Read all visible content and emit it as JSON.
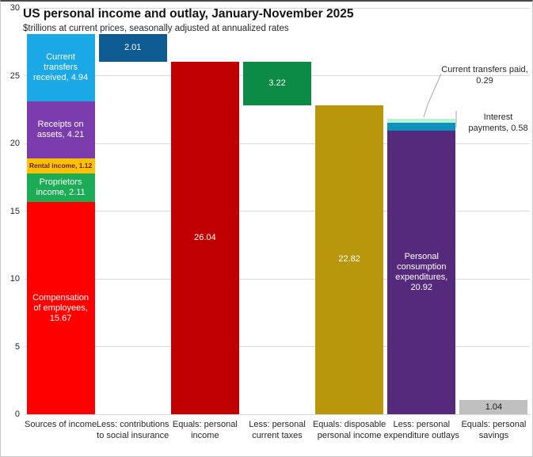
{
  "chart_data": {
    "type": "bar",
    "subtype": "stacked-waterfall",
    "title": "US personal income and outlay, January-November 2025",
    "subtitle": "$trillions at current prices, seasonally adjusted at annualized rates",
    "ylim": [
      0,
      30
    ],
    "yticks": [
      0,
      5,
      10,
      15,
      20,
      25,
      30
    ],
    "grid": true,
    "legend": "none",
    "categories": [
      "Sources of income",
      "Less: contributions to social insurance",
      "Equals: personal income",
      "Less: personal current taxes",
      "Equals: disposable personal income",
      "Less: personal expenditure outlays",
      "Equals: personal savings"
    ],
    "bars": [
      {
        "category": "Sources of income",
        "base": 0,
        "segments": [
          {
            "name": "Compensation of employees",
            "value": 15.67,
            "label": "Compensation of employees, 15.67",
            "color": "#fe0000",
            "text_color": "#ffffff"
          },
          {
            "name": "Proprietors income",
            "value": 2.11,
            "label": "Proprietors income, 2.11",
            "color": "#1cac55",
            "text_color": "#ffffff"
          },
          {
            "name": "Rental income",
            "value": 1.12,
            "label": "Rental income, 1.12",
            "color": "#ffc000",
            "text_color": "#632423",
            "small_text": true
          },
          {
            "name": "Receipts on assets",
            "value": 4.21,
            "label": "Receipts on assets, 4.21",
            "color": "#7b3cae",
            "text_color": "#ffffff"
          },
          {
            "name": "Current transfers received",
            "value": 4.94,
            "label": "Current transfers received, 4.94",
            "color": "#1ba8e6",
            "text_color": "#ffffff"
          }
        ]
      },
      {
        "category": "Less: contributions to social insurance",
        "base": 26.04,
        "segments": [
          {
            "name": "Contributions to social insurance",
            "value": 2.01,
            "label": "2.01",
            "color": "#0f5b94",
            "text_color": "#ffffff"
          }
        ]
      },
      {
        "category": "Equals: personal income",
        "base": 0,
        "segments": [
          {
            "name": "Personal income",
            "value": 26.04,
            "label": "26.04",
            "color": "#c00000",
            "text_color": "#ffffff"
          }
        ]
      },
      {
        "category": "Less: personal current taxes",
        "base": 22.82,
        "segments": [
          {
            "name": "Personal current taxes",
            "value": 3.22,
            "label": "3.22",
            "color": "#0c8b46",
            "text_color": "#ffffff"
          }
        ]
      },
      {
        "category": "Equals: disposable personal income",
        "base": 0,
        "segments": [
          {
            "name": "Disposable personal income",
            "value": 22.82,
            "label": "22.82",
            "color": "#b9970c",
            "text_color": "#ffffff"
          }
        ]
      },
      {
        "category": "Less: personal expenditure outlays",
        "base": 0,
        "segments": [
          {
            "name": "Personal consumption expenditures",
            "value": 20.92,
            "label": "Personal consumption expenditures, 20.92",
            "color": "#552a7d",
            "text_color": "#ffffff"
          },
          {
            "name": "Interest payments",
            "value": 0.58,
            "label": "",
            "color": "#0d91bd",
            "text_color": "#ffffff"
          },
          {
            "name": "Current transfers paid",
            "value": 0.29,
            "label": "",
            "color": "#b9f2d3",
            "text_color": "#262626"
          }
        ]
      },
      {
        "category": "Equals: personal savings",
        "base": 0,
        "segments": [
          {
            "name": "Personal savings",
            "value": 1.04,
            "label": "1.04",
            "color": "#c0c0c0",
            "text_color": "#1a1a1a"
          }
        ]
      }
    ],
    "annotations": [
      {
        "text": "Current transfers paid, 0.29",
        "target_segment": "Current transfers paid"
      },
      {
        "text": "Interest payments, 0.58",
        "target_segment": "Interest payments"
      }
    ],
    "colors": {
      "gridline": "#d9d9d9",
      "leader_line": "#a6a6a6",
      "axis_text": "#262626"
    }
  }
}
